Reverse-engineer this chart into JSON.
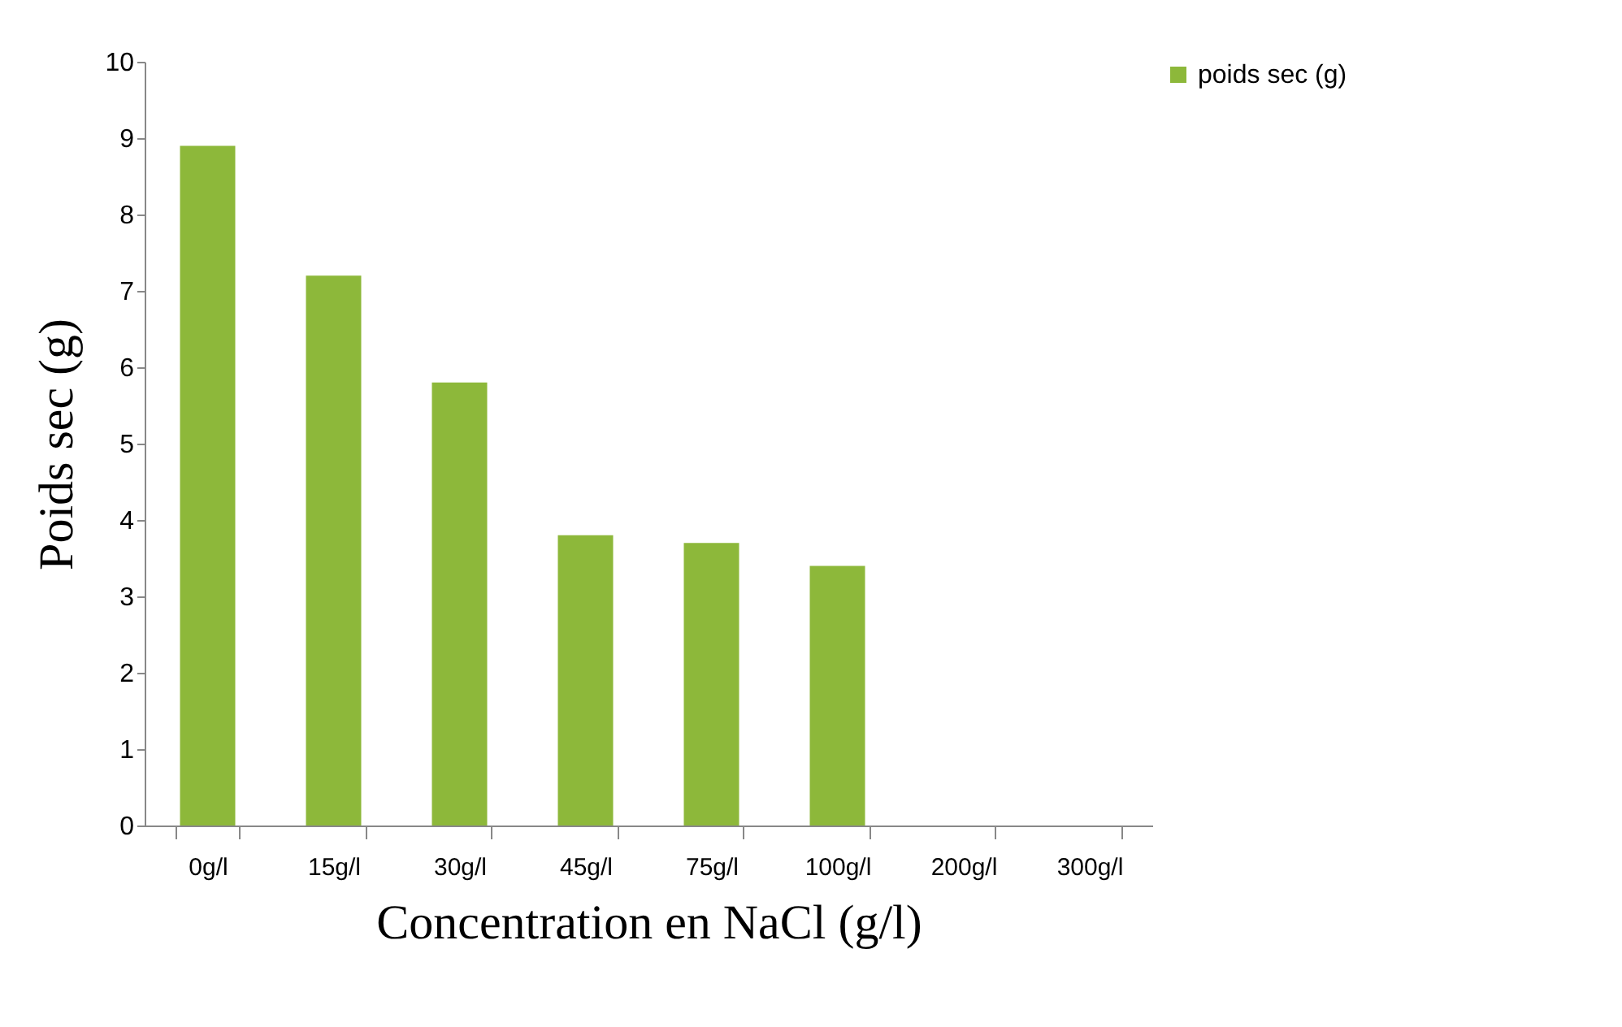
{
  "chart_data": {
    "type": "bar",
    "xlabel": "Concentration en NaCl (g/l)",
    "ylabel": "Poids sec (g)",
    "categories": [
      "0g/l",
      "15g/l",
      "30g/l",
      "45g/l",
      "75g/l",
      "100g/l",
      "200g/l",
      "300g/l"
    ],
    "series": [
      {
        "name": "poids sec (g)",
        "color": "#8db83a",
        "values": [
          8.9,
          7.2,
          5.8,
          3.8,
          3.7,
          3.4,
          null,
          null
        ]
      }
    ],
    "ylim": [
      0,
      10
    ],
    "yticks": [
      0,
      1,
      2,
      3,
      4,
      5,
      6,
      7,
      8,
      9,
      10
    ],
    "grid": false,
    "legend": "right"
  }
}
